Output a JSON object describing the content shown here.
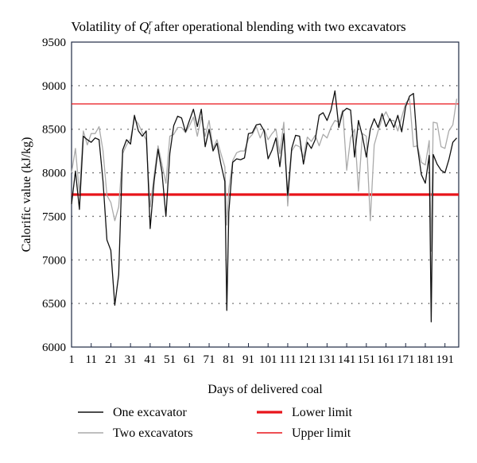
{
  "chart_data": {
    "type": "line",
    "title": "Volatility of ",
    "title_symbol": "Q",
    "title_sup": "r",
    "title_sub": "i",
    "title_rest": " after operational blending with two excavators",
    "xlabel": "Days of delivered coal",
    "ylabel": "Calorific value (kJ/kg)",
    "ylim": [
      6000,
      9500
    ],
    "yticks": [
      6000,
      6500,
      7000,
      7500,
      8000,
      8500,
      9000,
      9500
    ],
    "xlim": [
      1,
      198
    ],
    "xticks": [
      1,
      11,
      21,
      31,
      41,
      51,
      61,
      71,
      81,
      91,
      101,
      111,
      121,
      131,
      141,
      151,
      161,
      171,
      181,
      191
    ],
    "grid": "horizontal dotted",
    "legend_placement": "bottom",
    "series": [
      {
        "name": "One excavator",
        "color": "#111111",
        "width": 1.3,
        "x": [
          1,
          3,
          5,
          7,
          9,
          11,
          13,
          15,
          17,
          19,
          21,
          23,
          25,
          27,
          29,
          31,
          33,
          35,
          37,
          39,
          41,
          43,
          45,
          47,
          49,
          51,
          53,
          55,
          57,
          59,
          61,
          63,
          65,
          67,
          69,
          71,
          73,
          75,
          77,
          79,
          80,
          81,
          83,
          85,
          87,
          89,
          91,
          93,
          95,
          97,
          99,
          101,
          103,
          105,
          107,
          109,
          111,
          113,
          115,
          117,
          119,
          121,
          123,
          125,
          127,
          129,
          131,
          133,
          135,
          137,
          139,
          141,
          143,
          145,
          147,
          149,
          151,
          153,
          155,
          157,
          159,
          161,
          163,
          165,
          167,
          169,
          171,
          173,
          175,
          177,
          179,
          181,
          183,
          184,
          185,
          187,
          189,
          191,
          193,
          195,
          197
        ],
        "y": [
          7640,
          8020,
          7580,
          8420,
          8380,
          8350,
          8400,
          8380,
          7900,
          7230,
          7110,
          6480,
          6830,
          8260,
          8380,
          8330,
          8660,
          8480,
          8420,
          8480,
          7360,
          7900,
          8270,
          8010,
          7500,
          8220,
          8540,
          8650,
          8630,
          8470,
          8600,
          8730,
          8530,
          8730,
          8300,
          8500,
          8250,
          8340,
          8100,
          7900,
          6420,
          7550,
          8120,
          8160,
          8150,
          8170,
          8450,
          8460,
          8550,
          8560,
          8480,
          8160,
          8260,
          8400,
          8070,
          8450,
          7740,
          8280,
          8430,
          8420,
          8100,
          8350,
          8280,
          8380,
          8660,
          8690,
          8600,
          8720,
          8940,
          8520,
          8700,
          8740,
          8720,
          8180,
          8600,
          8420,
          8180,
          8500,
          8620,
          8520,
          8680,
          8530,
          8620,
          8520,
          8660,
          8470,
          8760,
          8880,
          8910,
          8300,
          7980,
          7880,
          8200,
          6290,
          8210,
          8100,
          8030,
          8000,
          8150,
          8350,
          8400
        ]
      },
      {
        "name": "Two excavators",
        "color": "#aaaaaa",
        "width": 1.3,
        "x": [
          1,
          3,
          5,
          7,
          9,
          11,
          13,
          15,
          17,
          19,
          21,
          23,
          25,
          27,
          29,
          31,
          33,
          35,
          37,
          39,
          41,
          43,
          45,
          47,
          49,
          51,
          53,
          55,
          57,
          59,
          61,
          63,
          65,
          67,
          69,
          71,
          73,
          75,
          77,
          79,
          80,
          81,
          83,
          85,
          87,
          89,
          91,
          93,
          95,
          97,
          99,
          101,
          103,
          105,
          107,
          109,
          111,
          113,
          115,
          117,
          119,
          121,
          123,
          125,
          127,
          129,
          131,
          133,
          135,
          137,
          139,
          141,
          143,
          145,
          147,
          149,
          151,
          153,
          155,
          157,
          159,
          161,
          163,
          165,
          167,
          169,
          171,
          173,
          175,
          177,
          179,
          181,
          183,
          184,
          185,
          187,
          189,
          191,
          193,
          195,
          197
        ],
        "y": [
          8000,
          8280,
          7760,
          8480,
          8320,
          8450,
          8450,
          8530,
          8250,
          7740,
          7660,
          7450,
          7610,
          8220,
          8320,
          8390,
          8620,
          8560,
          8460,
          8380,
          7610,
          7970,
          8310,
          8100,
          7880,
          8420,
          8440,
          8520,
          8520,
          8460,
          8540,
          8640,
          8420,
          8640,
          8420,
          8600,
          8280,
          8380,
          8220,
          8070,
          7400,
          7810,
          8140,
          8230,
          8250,
          8250,
          8390,
          8440,
          8530,
          8400,
          8500,
          8380,
          8450,
          8500,
          8220,
          8580,
          7620,
          8250,
          8320,
          8300,
          8180,
          8410,
          8360,
          8430,
          8310,
          8440,
          8400,
          8520,
          8600,
          8580,
          8720,
          8030,
          8400,
          8500,
          7790,
          8450,
          8420,
          7450,
          8320,
          8480,
          8620,
          8700,
          8600,
          8600,
          8480,
          8640,
          8800,
          8850,
          8300,
          8310,
          8120,
          8090,
          8370,
          7100,
          8580,
          8570,
          8300,
          8280,
          8480,
          8550,
          8850
        ]
      }
    ],
    "limits": [
      {
        "name": "Lower limit",
        "value": 7750,
        "color": "#e8141a",
        "width": 3.2
      },
      {
        "name": "Upper limit",
        "value": 8790,
        "color": "#e8141a",
        "width": 1.3
      }
    ]
  }
}
